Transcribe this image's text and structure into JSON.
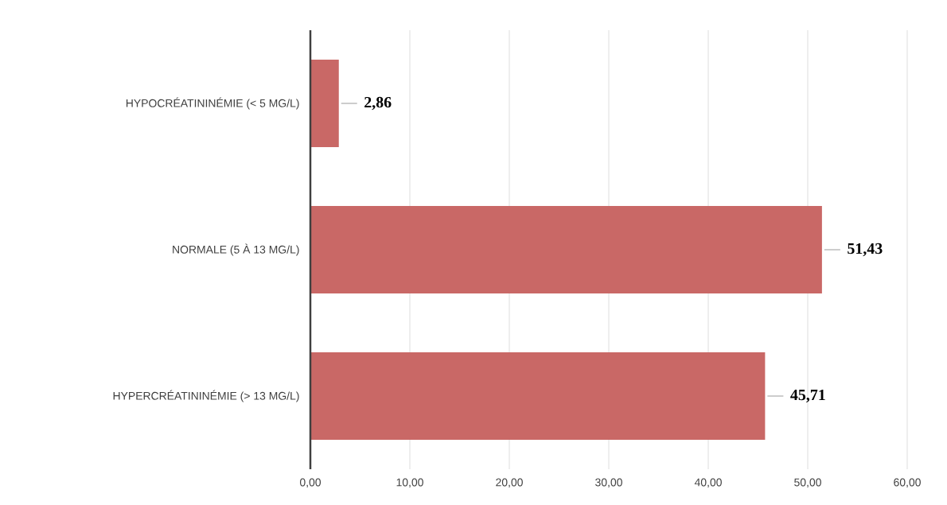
{
  "chart_data": {
    "type": "bar",
    "orientation": "horizontal",
    "categories": [
      "HYPOCRÉATININÉMIE (< 5 MG/L)",
      "NORMALE (5 À 13 MG/L)",
      "HYPERCRÉATININÉMIE (> 13 MG/L)"
    ],
    "values": [
      2.86,
      51.43,
      45.71
    ],
    "value_labels": [
      "2,86",
      "51,43",
      "45,71"
    ],
    "color": "#c96866",
    "xlim": [
      0,
      60
    ],
    "xticks": [
      {
        "value": 0,
        "label": "0,00"
      },
      {
        "value": 10,
        "label": "10,00"
      },
      {
        "value": 20,
        "label": "20,00"
      },
      {
        "value": 30,
        "label": "30,00"
      },
      {
        "value": 40,
        "label": "40,00"
      },
      {
        "value": 50,
        "label": "50,00"
      },
      {
        "value": 60,
        "label": "60,00"
      }
    ],
    "grid": "x"
  }
}
